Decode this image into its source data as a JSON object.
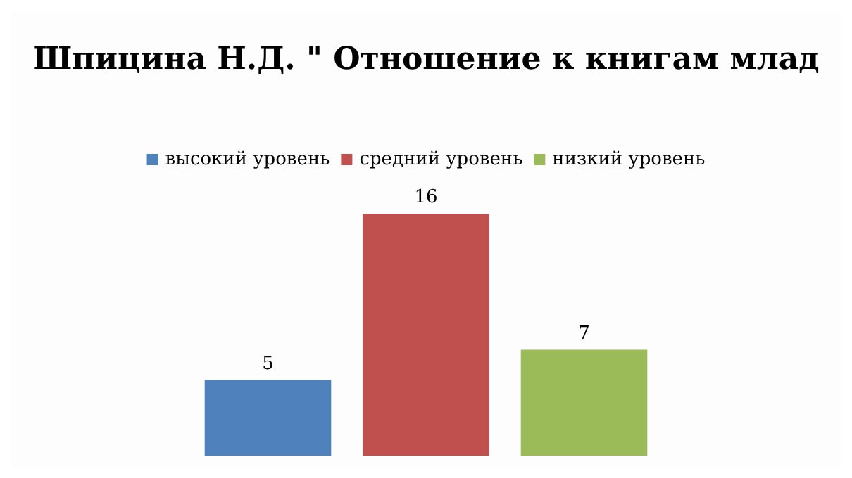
{
  "chart_data": {
    "type": "bar",
    "title": "Шпицина Н.Д. \" Отношение к книгам млад",
    "categories": [
      null
    ],
    "series": [
      {
        "name": "высокий уровень",
        "color": "#4f81bd",
        "values": [
          5
        ]
      },
      {
        "name": "средний уровень",
        "color": "#c0504d",
        "values": [
          16
        ]
      },
      {
        "name": "низкий уровень",
        "color": "#9bbb59",
        "values": [
          7
        ]
      }
    ],
    "data_labels": true,
    "legend": "top"
  }
}
